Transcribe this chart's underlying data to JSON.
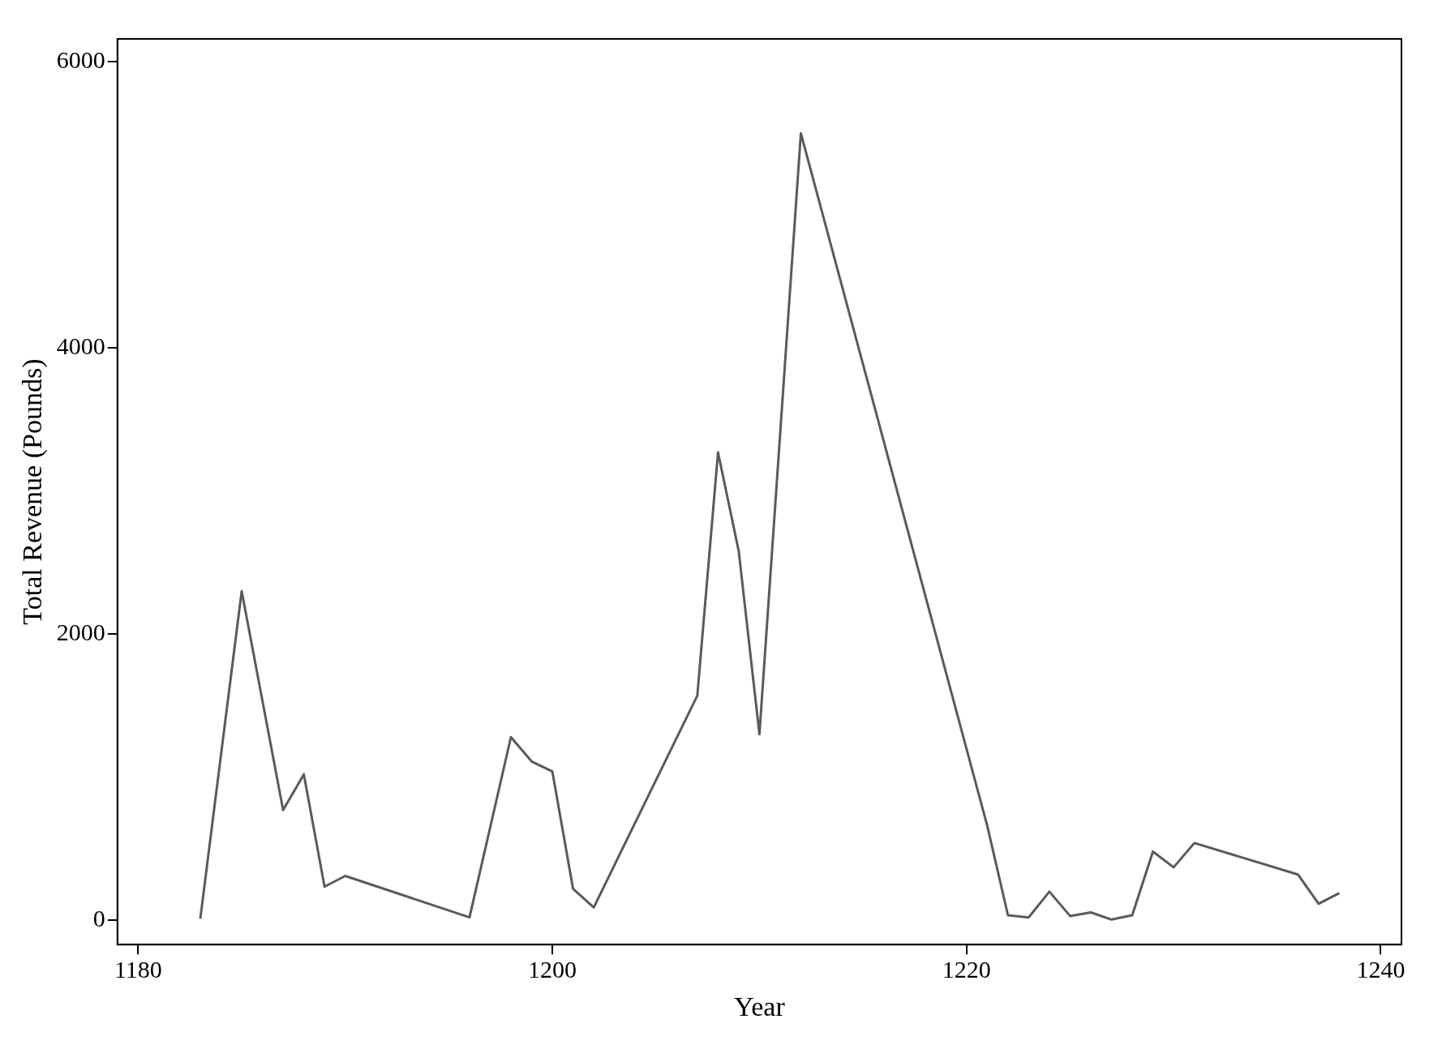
{
  "chart_data": {
    "type": "line",
    "xlabel": "Year",
    "ylabel": "Total Revenue (Pounds)",
    "x": [
      1183,
      1185,
      1187,
      1188,
      1189,
      1190,
      1196,
      1198,
      1199,
      1200,
      1201,
      1202,
      1207,
      1208,
      1209,
      1210,
      1212,
      1221,
      1222,
      1223,
      1224,
      1225,
      1226,
      1227,
      1228,
      1229,
      1230,
      1231,
      1236,
      1237,
      1238
    ],
    "series": [
      {
        "color": "#5a5a5a",
        "values": [
          10,
          2300,
          770,
          1020,
          235,
          310,
          20,
          1280,
          1110,
          1040,
          220,
          90,
          1570,
          3270,
          2580,
          1300,
          5500,
          660,
          35,
          20,
          200,
          30,
          55,
          5,
          35,
          480,
          370,
          540,
          320,
          115,
          190
        ]
      }
    ],
    "xlim": [
      1179,
      1241
    ],
    "xticks": [
      1180,
      1200,
      1220,
      1240
    ],
    "ylim": [
      -170,
      6160
    ],
    "yticks": [
      0,
      2000,
      4000,
      6000
    ],
    "grid": false,
    "legend": false,
    "marker": "none",
    "line_style": "solid"
  }
}
